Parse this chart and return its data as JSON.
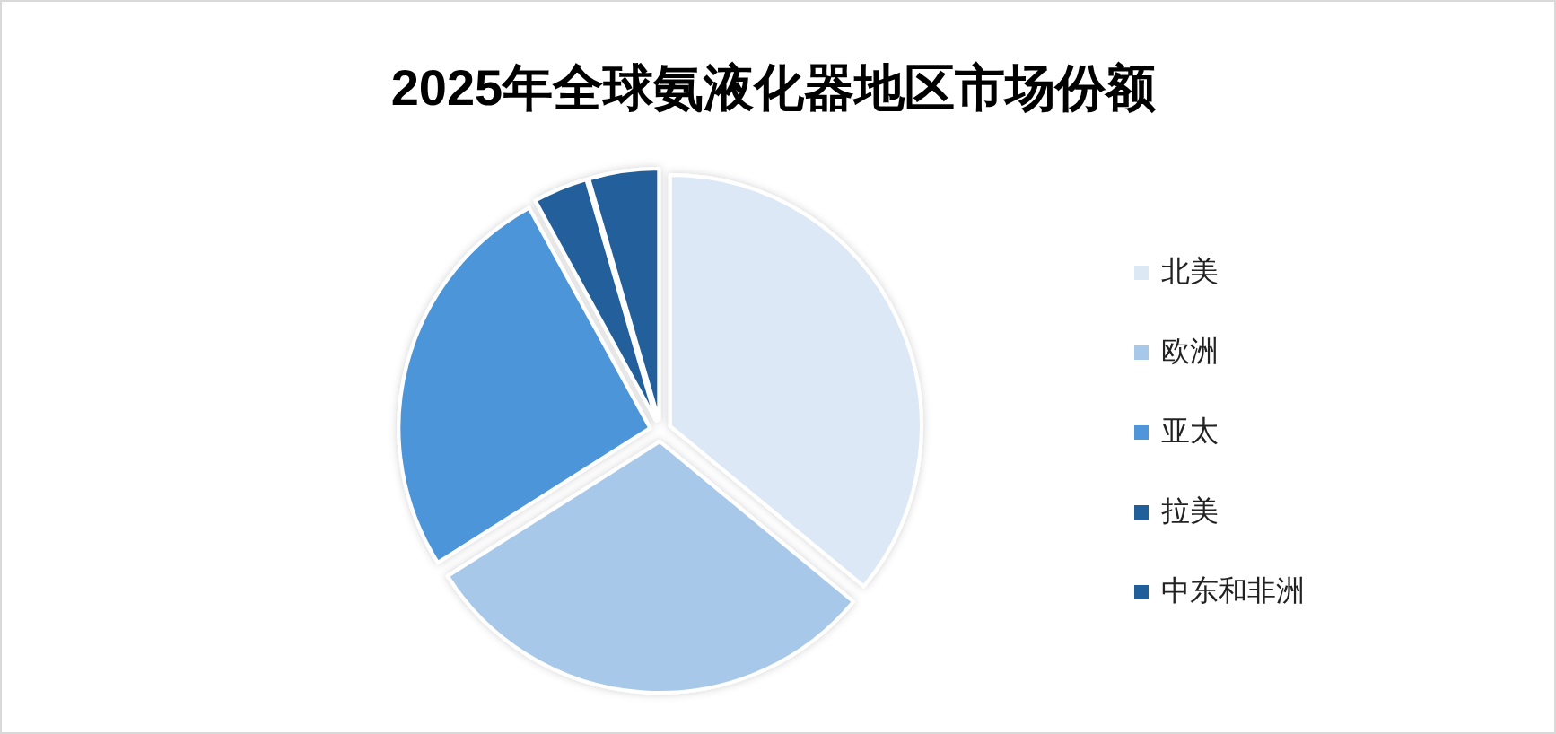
{
  "chart_data": {
    "type": "pie",
    "title": "2025年全球氨液化器地区市场份额",
    "categories": [
      "北美",
      "欧洲",
      "亚太",
      "拉美",
      "中东和非洲"
    ],
    "values": [
      36,
      30,
      26,
      3.5,
      4.5
    ],
    "colors": [
      "#dce8f5",
      "#a8c8ea",
      "#4e95d9",
      "#215f9b",
      "#215f9b"
    ],
    "legend": "right"
  }
}
